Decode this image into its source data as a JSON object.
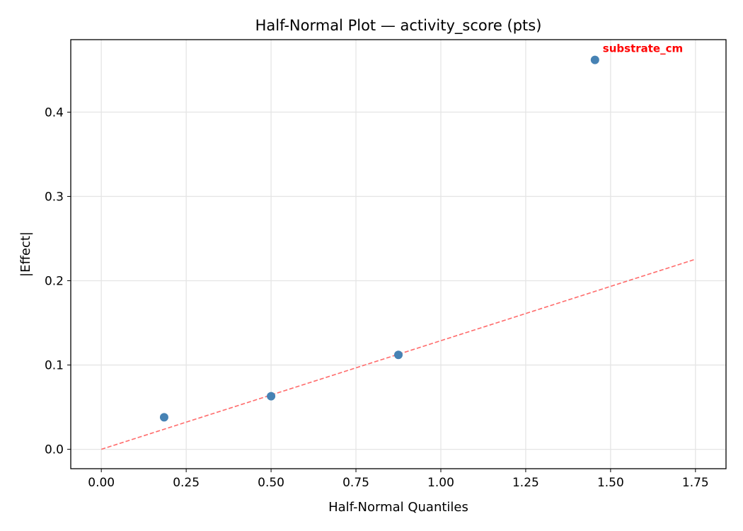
{
  "chart_data": {
    "type": "scatter",
    "title": "Half-Normal Plot — activity_score (pts)",
    "xlabel": "Half-Normal Quantiles",
    "ylabel": "|Effect|",
    "xlim": [
      -0.09,
      1.84
    ],
    "ylim": [
      -0.023,
      0.486
    ],
    "xticks": [
      0.0,
      0.25,
      0.5,
      0.75,
      1.0,
      1.25,
      1.5,
      1.75
    ],
    "xtick_labels": [
      "0.00",
      "0.25",
      "0.50",
      "0.75",
      "1.00",
      "1.25",
      "1.50",
      "1.75"
    ],
    "yticks": [
      0.0,
      0.1,
      0.2,
      0.3,
      0.4
    ],
    "ytick_labels": [
      "0.0",
      "0.1",
      "0.2",
      "0.3",
      "0.4"
    ],
    "grid": true,
    "points": [
      {
        "x": 0.185,
        "y": 0.038,
        "label": ""
      },
      {
        "x": 0.5,
        "y": 0.063,
        "label": ""
      },
      {
        "x": 0.875,
        "y": 0.112,
        "label": ""
      },
      {
        "x": 1.454,
        "y": 0.462,
        "label": "substrate_cm"
      }
    ],
    "reference_line": {
      "x": [
        0.0,
        1.75
      ],
      "y": [
        0.0,
        0.2255
      ],
      "style": "dashed"
    },
    "colors": {
      "points": "#4682b4",
      "reference_line": "#ff6b6b",
      "annotation": "#ff0000"
    }
  }
}
